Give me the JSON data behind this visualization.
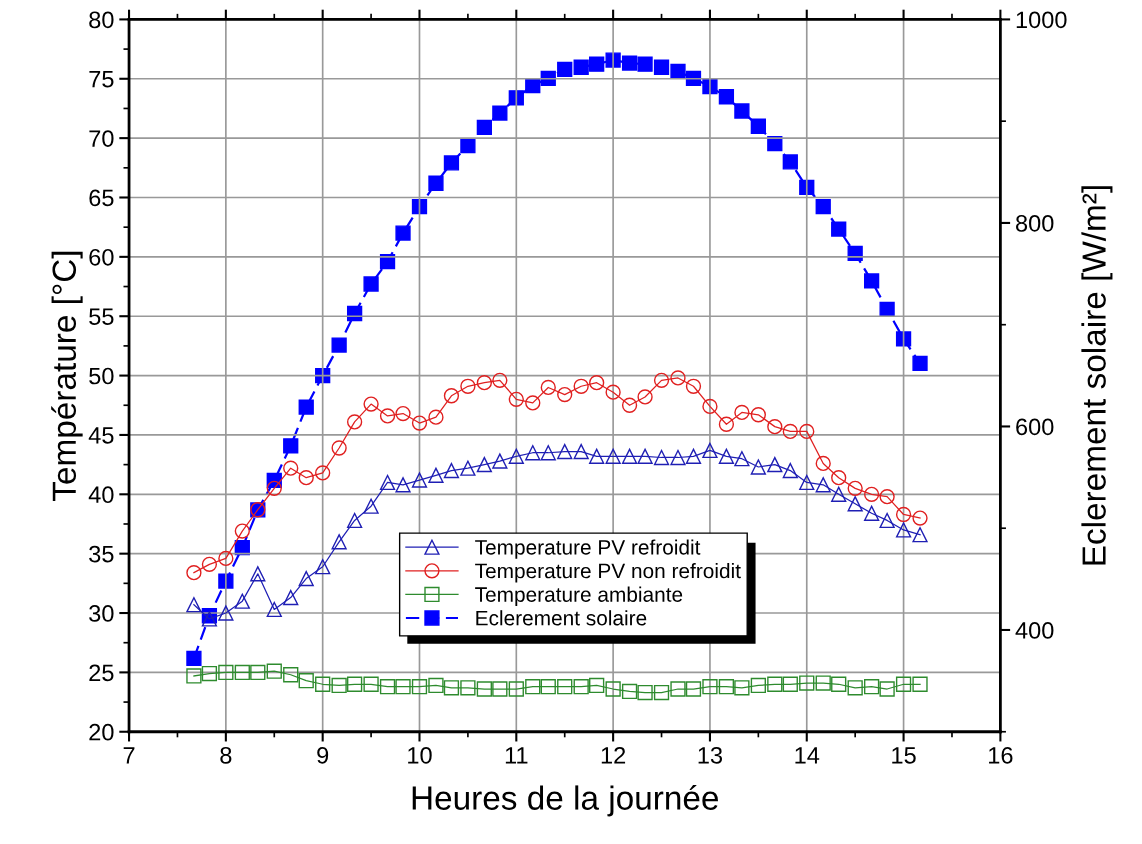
{
  "chart_data": {
    "type": "line",
    "xlabel": "Heures de la journée",
    "ylabel": "Température [°C]",
    "y2label": "Eclerement solaire [W/m²]",
    "xlim": [
      7,
      16
    ],
    "xticks": [
      7,
      8,
      9,
      10,
      11,
      12,
      13,
      14,
      15,
      16
    ],
    "ylim": [
      20,
      80
    ],
    "yticks": [
      20,
      25,
      30,
      35,
      40,
      45,
      50,
      55,
      60,
      65,
      70,
      75,
      80
    ],
    "y2lim": [
      300,
      1000
    ],
    "y2ticks": [
      400,
      600,
      800,
      1000
    ],
    "grid": true,
    "legend": "bottom",
    "x": [
      7.67,
      7.83,
      8.0,
      8.17,
      8.33,
      8.5,
      8.67,
      8.83,
      9.0,
      9.17,
      9.33,
      9.5,
      9.67,
      9.83,
      10.0,
      10.17,
      10.33,
      10.5,
      10.67,
      10.83,
      11.0,
      11.17,
      11.33,
      11.5,
      11.67,
      11.83,
      12.0,
      12.17,
      12.33,
      12.5,
      12.67,
      12.83,
      13.0,
      13.17,
      13.33,
      13.5,
      13.67,
      13.83,
      14.0,
      14.17,
      14.33,
      14.5,
      14.67,
      14.83,
      15.0,
      15.17
    ],
    "series": [
      {
        "name": "Temperature PV refroidit",
        "color": "#1f1fb4",
        "marker": "triangle",
        "line_style": "solid",
        "values": [
          30.7,
          29.5,
          30.0,
          31.0,
          33.3,
          30.3,
          31.3,
          32.9,
          33.9,
          36.0,
          37.8,
          39.0,
          41.0,
          40.8,
          41.2,
          41.6,
          42.0,
          42.2,
          42.5,
          42.8,
          43.2,
          43.5,
          43.5,
          43.6,
          43.6,
          43.2,
          43.2,
          43.2,
          43.2,
          43.1,
          43.1,
          43.2,
          43.7,
          43.2,
          43.0,
          42.3,
          42.5,
          42.0,
          41.0,
          40.8,
          40.0,
          39.2,
          38.4,
          37.8,
          37.0,
          36.6
        ]
      },
      {
        "name": "Temperature PV non refroidit",
        "color": "#e02020",
        "marker": "circle",
        "line_style": "solid",
        "values": [
          33.4,
          34.1,
          34.6,
          36.9,
          38.7,
          40.5,
          42.2,
          41.4,
          41.8,
          43.9,
          46.1,
          47.6,
          46.6,
          46.8,
          46.0,
          46.5,
          48.3,
          49.1,
          49.4,
          49.6,
          48.0,
          47.7,
          49.0,
          48.4,
          49.1,
          49.4,
          48.6,
          47.5,
          48.2,
          49.6,
          49.8,
          49.1,
          47.4,
          45.9,
          46.9,
          46.7,
          45.7,
          45.3,
          45.3,
          42.6,
          41.4,
          40.5,
          40.0,
          39.8,
          38.3,
          38.0
        ]
      },
      {
        "name": "Temperature ambiante",
        "color": "#2e8b2e",
        "marker": "square",
        "line_style": "solid",
        "values": [
          24.7,
          24.9,
          25.0,
          25.0,
          25.0,
          25.1,
          24.8,
          24.3,
          24.0,
          23.9,
          24.0,
          24.0,
          23.8,
          23.8,
          23.8,
          23.9,
          23.7,
          23.7,
          23.6,
          23.6,
          23.6,
          23.8,
          23.8,
          23.8,
          23.8,
          23.9,
          23.6,
          23.4,
          23.3,
          23.3,
          23.6,
          23.6,
          23.8,
          23.8,
          23.7,
          23.9,
          24.0,
          24.0,
          24.1,
          24.1,
          24.0,
          23.7,
          23.8,
          23.6,
          24.0,
          24.0
        ]
      },
      {
        "name": "Eclerement solaire",
        "color": "#0000ff",
        "marker": "square",
        "line_style": "dashed",
        "axis": "y2",
        "values": [
          372,
          414,
          448,
          481,
          518,
          547,
          581,
          619,
          650,
          680,
          711,
          740,
          762,
          790,
          816,
          839,
          859,
          876,
          894,
          908,
          923,
          935,
          942,
          951,
          953,
          956,
          960,
          957,
          956,
          953,
          949,
          942,
          934,
          924,
          910,
          895,
          878,
          860,
          835,
          816,
          794,
          770,
          743,
          715,
          686,
          662
        ]
      }
    ]
  }
}
